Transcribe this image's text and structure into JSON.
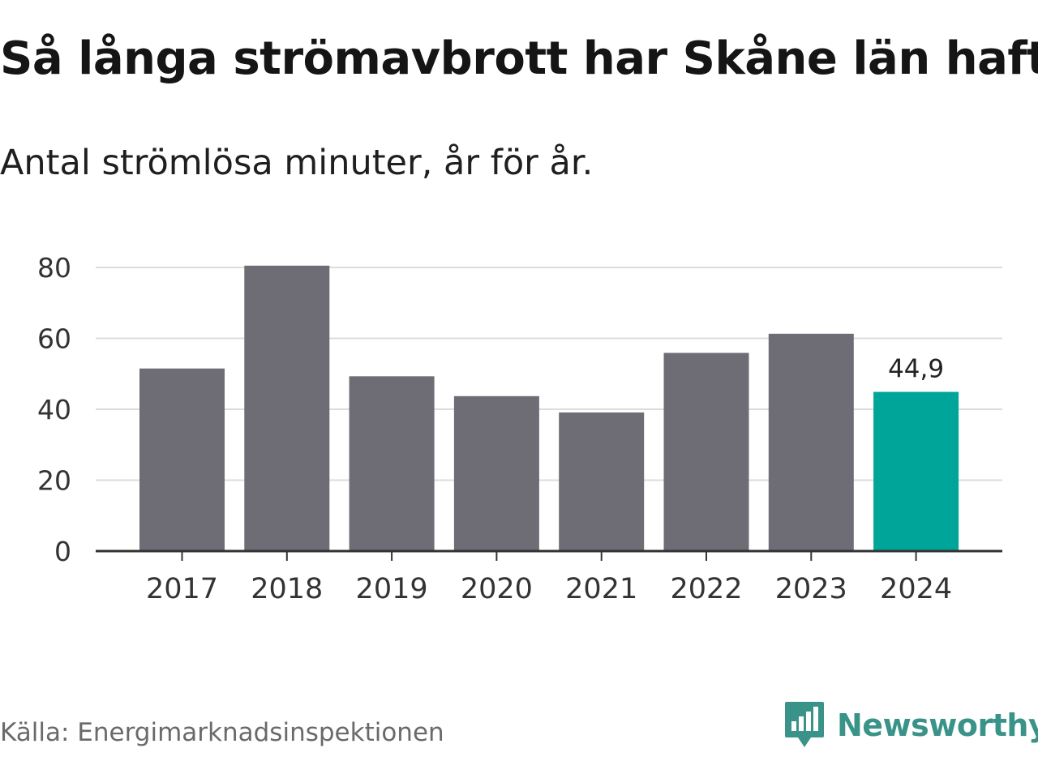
{
  "title": "Så långa strömavbrott har Skåne län haft",
  "subtitle": "Antal strömlösa minuter, år för år.",
  "source": "Källa: Energimarknadsinspektionen",
  "brand": {
    "name": "Newsworthy",
    "icon": "bar-chart-speech-bubble-icon",
    "color": "#3a9388"
  },
  "colors": {
    "bar": "#6e6d75",
    "highlight": "#00a59a",
    "grid": "#dcdcdc",
    "axis": "#333333"
  },
  "chart_data": {
    "type": "bar",
    "title": "Så långa strömavbrott har Skåne län haft",
    "subtitle": "Antal strömlösa minuter, år för år.",
    "categories": [
      "2017",
      "2018",
      "2019",
      "2020",
      "2021",
      "2022",
      "2023",
      "2024"
    ],
    "values": [
      51.5,
      80.5,
      49.3,
      43.7,
      39.1,
      55.9,
      61.3,
      44.9
    ],
    "highlight_index": 7,
    "data_labels": [
      {
        "index": 7,
        "text": "44,9"
      }
    ],
    "yticks": [
      "0",
      "20",
      "40",
      "60",
      "80"
    ],
    "ytick_values": [
      0,
      20,
      40,
      60,
      80
    ],
    "ylim": [
      0,
      80
    ],
    "xlabel": "",
    "ylabel": "",
    "grid": true,
    "legend": "none"
  }
}
